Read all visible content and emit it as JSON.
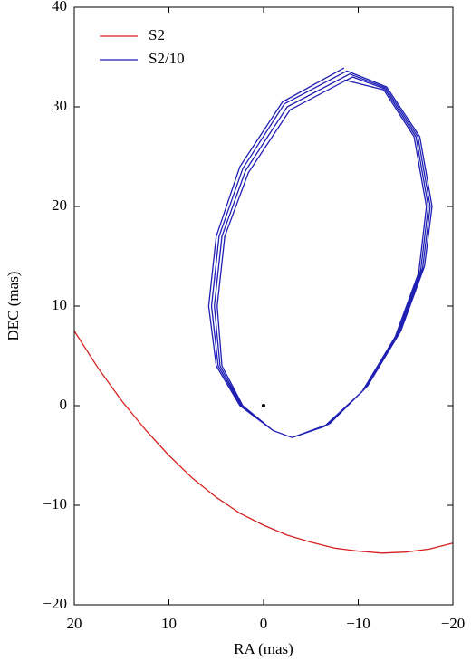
{
  "chart_data": {
    "type": "line",
    "xlabel": "RA (mas)",
    "ylabel": "DEC (mas)",
    "xlim": [
      20,
      -20
    ],
    "ylim": [
      -20,
      40
    ],
    "xticks": [
      20,
      10,
      0,
      {
        "value": -10,
        "label": "−10"
      },
      {
        "value": -20,
        "label": "−20"
      }
    ],
    "yticks": [
      {
        "value": -20,
        "label": "−20"
      },
      {
        "value": -10,
        "label": "−10"
      },
      0,
      10,
      20,
      30,
      40
    ],
    "legend": "upper left",
    "series": [
      {
        "name": "S2",
        "color": "#d62020",
        "x": [
          20,
          17.5,
          15,
          12.5,
          10,
          7.5,
          5,
          2.5,
          0,
          -2.5,
          -5,
          -7.5,
          -10,
          -12.5,
          -15,
          -17.5,
          -20
        ],
        "y": [
          7.5,
          3.8,
          0.5,
          -2.4,
          -5,
          -7.3,
          -9.2,
          -10.8,
          -12,
          -13,
          -13.7,
          -14.3,
          -14.6,
          -14.8,
          -14.7,
          -14.4,
          -13.8
        ]
      },
      {
        "name": "S2/10",
        "color": "#1f1fb4",
        "x": [
          -8.5,
          -2,
          2.5,
          5,
          5.8,
          5,
          2.5,
          -1,
          -3,
          -7,
          -11,
          -14.5,
          -17,
          -17.8,
          -16.5,
          -13,
          -8.8,
          -2.2,
          2.2,
          4.7,
          5.5,
          4.8,
          2.4,
          -1,
          -3,
          -6.8,
          -10.8,
          -14.3,
          -16.8,
          -17.6,
          -16.3,
          -12.9,
          -9.1,
          -2.5,
          1.9,
          4.4,
          5.2,
          4.6,
          2.3,
          -1,
          -3,
          -6.6,
          -10.6,
          -14.1,
          -16.6,
          -17.4,
          -16.1,
          -12.8,
          -9.4,
          -2.8,
          1.6,
          4.1,
          4.9,
          4.4,
          2.2,
          -1,
          -3,
          -6.4,
          -10.4,
          -13.9,
          -16.4,
          -17.2,
          -15.9,
          -12.7,
          -8.5
        ],
        "y": [
          33.9,
          30.5,
          24,
          17,
          10,
          4,
          0,
          -2.5,
          -3.2,
          -1.8,
          2,
          7.5,
          14,
          20,
          27,
          32,
          33.6,
          30.3,
          23.8,
          17,
          10,
          4,
          0,
          -2.5,
          -3.2,
          -1.9,
          1.8,
          7.3,
          13.8,
          20,
          27,
          31.9,
          33.3,
          30,
          23.6,
          17,
          10,
          4,
          0,
          -2.5,
          -3.2,
          -2,
          1.6,
          7.1,
          13.6,
          20,
          27,
          31.8,
          33,
          29.7,
          23.4,
          17,
          10,
          4,
          0,
          -2.5,
          -3.2,
          -2.1,
          1.4,
          6.9,
          13.4,
          20,
          27,
          31.7,
          32.7
        ]
      }
    ],
    "points": {
      "x": [
        0
      ],
      "y": [
        0
      ],
      "color": "#000000"
    }
  }
}
